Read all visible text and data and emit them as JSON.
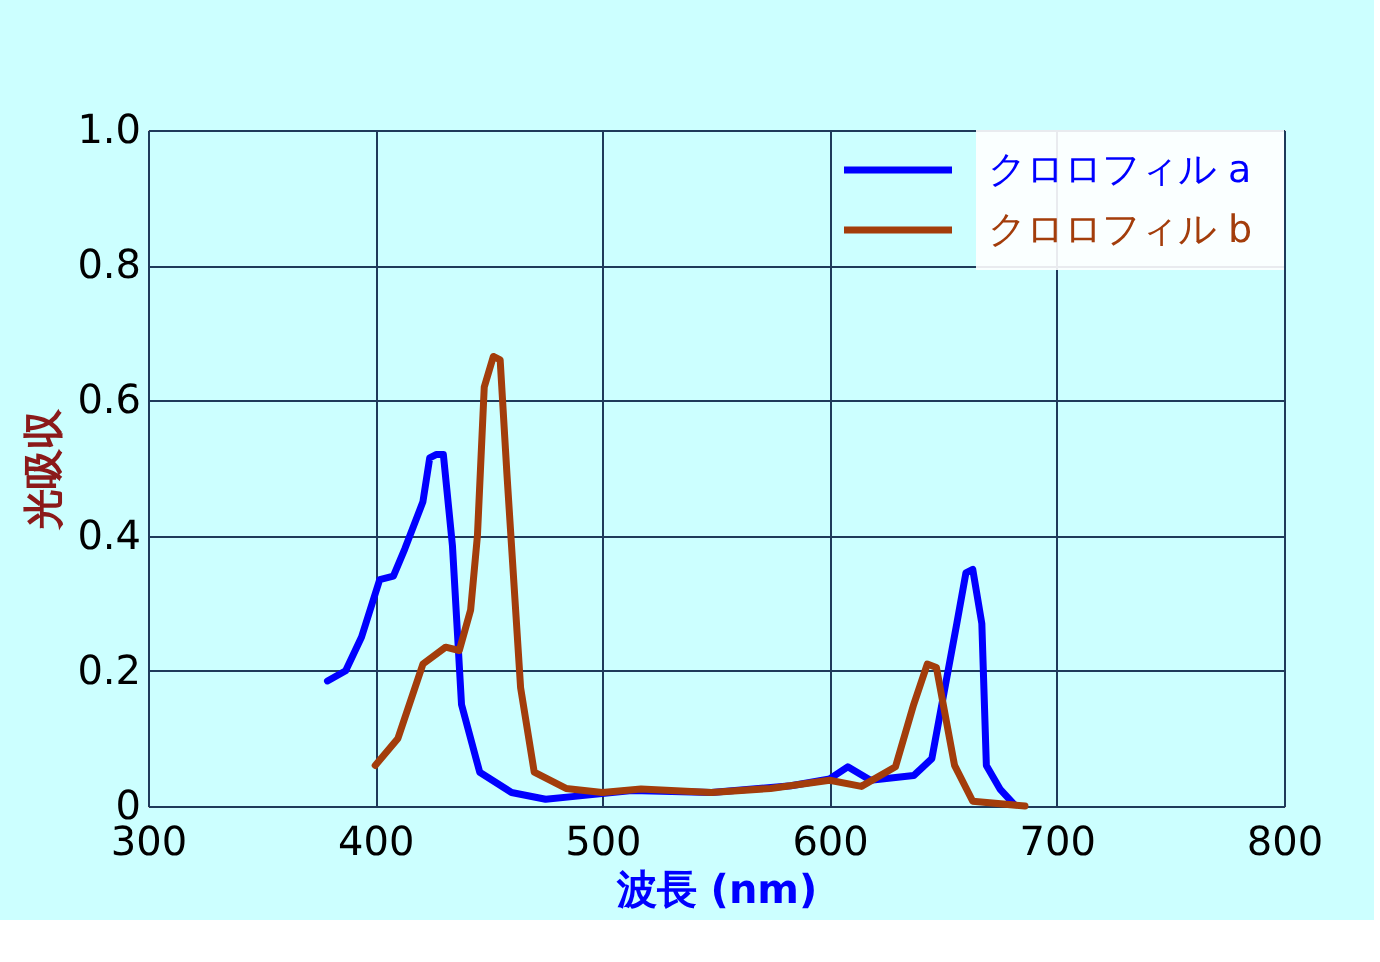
{
  "chart_data": {
    "type": "line",
    "xlabel": "波長 (nm)",
    "ylabel": "光吸収",
    "xlim": [
      300,
      800
    ],
    "xticks": [
      300,
      400,
      500,
      600,
      700,
      800
    ],
    "ylim": [
      0,
      1
    ],
    "yticks": [
      {
        "value": 0,
        "label": "0"
      },
      0.2,
      0.4,
      0.6,
      0.8,
      {
        "value": 1,
        "label": "1.0"
      }
    ],
    "grid": true,
    "legend": "top right",
    "line_style": "solid",
    "series": [
      {
        "name": "クロロフィル a",
        "color": "#0000ff",
        "x": [
          379,
          387,
          394,
          402,
          408,
          413,
          421,
          424,
          427,
          430,
          434,
          438,
          446,
          460,
          475,
          490,
          513,
          548,
          583,
          600,
          608,
          618,
          637,
          645,
          656,
          660,
          663,
          667,
          669,
          675,
          681
        ],
        "values": [
          0.185,
          0.2,
          0.25,
          0.335,
          0.34,
          0.38,
          0.45,
          0.515,
          0.52,
          0.52,
          0.385,
          0.15,
          0.05,
          0.02,
          0.01,
          0.015,
          0.023,
          0.02,
          0.03,
          0.04,
          0.058,
          0.038,
          0.045,
          0.07,
          0.27,
          0.345,
          0.35,
          0.27,
          0.06,
          0.025,
          0.003
        ]
      },
      {
        "name": "クロロフィル b",
        "color": "#a33d0b",
        "x": [
          400,
          410,
          421,
          431,
          437,
          442,
          445,
          448,
          452,
          455,
          458,
          464,
          470,
          484,
          500,
          517,
          548,
          574,
          600,
          614,
          629,
          637,
          643,
          647,
          655,
          663,
          686
        ],
        "values": [
          0.06,
          0.1,
          0.21,
          0.235,
          0.23,
          0.29,
          0.4,
          0.62,
          0.665,
          0.66,
          0.49,
          0.175,
          0.05,
          0.026,
          0.02,
          0.025,
          0.02,
          0.026,
          0.038,
          0.029,
          0.058,
          0.15,
          0.21,
          0.205,
          0.06,
          0.007,
          0
        ]
      }
    ]
  }
}
